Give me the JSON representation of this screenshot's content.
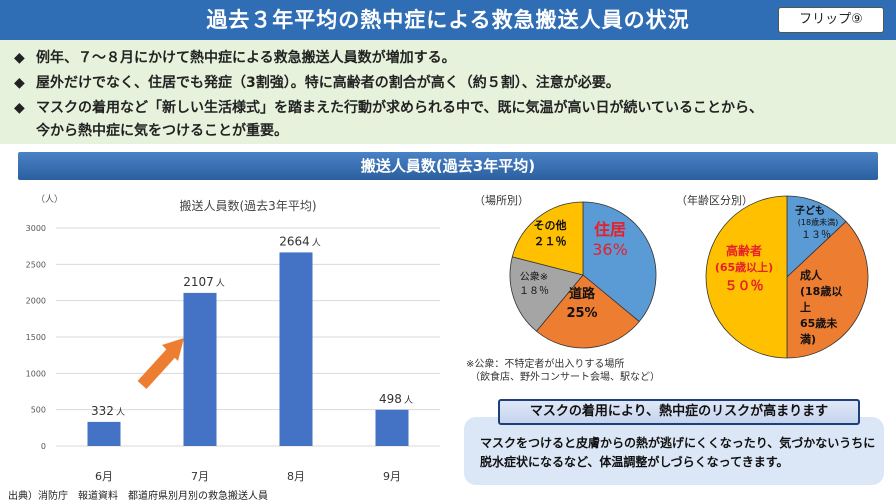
{
  "header": {
    "title": "過去３年平均の熱中症による救急搬送人員の状況",
    "flip_label": "フリップ⑨"
  },
  "bullets": [
    {
      "mark": "◆",
      "text": "例年、７～８月にかけて熱中症による救急搬送人員数が増加する。"
    },
    {
      "mark": "◆",
      "text": "屋外だけでなく、住居でも発症（3割強）。特に高齢者の割合が高く（約５割）、注意が必要。"
    },
    {
      "mark": "◆",
      "text": "マスクの着用など「新しい生活様式」を踏まえた行動が求められる中で、既に気温が高い日が続いていることから、",
      "continuation": "今から熱中症に気をつけることが重要。"
    }
  ],
  "section_title": "搬送人員数(過去3年平均)",
  "chart_data": [
    {
      "type": "bar",
      "title": "搬送人員数(過去3年平均)",
      "ylabel": "（人）",
      "categories": [
        "6月",
        "7月",
        "8月",
        "9月"
      ],
      "values": [
        332,
        2107,
        2664,
        498
      ],
      "value_labels": [
        "332",
        "2107",
        "2664",
        "498"
      ],
      "value_unit": "人",
      "ylim": [
        0,
        3000
      ],
      "yticks": [
        0,
        500,
        1000,
        1500,
        2000,
        2500,
        3000
      ],
      "grid": true,
      "bar_color": "#4472c4",
      "arrow_color": "#ed7d31"
    },
    {
      "type": "pie",
      "title": "（場所別）",
      "slices": [
        {
          "name": "住居",
          "value": 36,
          "label": "36%",
          "color": "#5b9bd5",
          "text_color": "#e6202a"
        },
        {
          "name": "道路",
          "value": 25,
          "label": "25%",
          "color": "#ed7d31",
          "text_color": "#111111"
        },
        {
          "name": "公衆※",
          "value": 18,
          "label": "１８％",
          "color": "#a5a5a5",
          "text_color": "#111111"
        },
        {
          "name": "その他",
          "value": 21,
          "label": "２１％",
          "color": "#ffc000",
          "text_color": "#111111"
        }
      ]
    },
    {
      "type": "pie",
      "title": "（年齢区分別）",
      "slices": [
        {
          "name": "子ども",
          "sublabel": "(18歳未満)",
          "value": 13,
          "label": "１３％",
          "color": "#5b9bd5",
          "text_color": "#111111"
        },
        {
          "name": "成人",
          "sublabel": "(18歳以上65歳未満)",
          "value": 37,
          "label": "",
          "color": "#ed7d31",
          "text_color": "#111111"
        },
        {
          "name": "高齢者",
          "sublabel": "(65歳以上)",
          "value": 50,
          "label": "５０％",
          "color": "#ffc000",
          "text_color": "#e6202a"
        }
      ]
    }
  ],
  "pie_labels": {
    "adult_lines": [
      "成人",
      "(18歳以",
      "上",
      "65歳未",
      "満)"
    ],
    "child_sub": "(18歳未満)"
  },
  "notes": {
    "public_note_1": "※公衆：不特定者が出入りする場所",
    "public_note_2": "（飲食店、野外コンサート会場、駅など）"
  },
  "mask": {
    "title": "マスクの着用により、熱中症のリスクが高まります",
    "text": "マスクをつけると皮膚からの熱が逃げにくくなったり、気づかないうちに脱水症状になるなど、体温調整がしづらくなってきます。"
  },
  "source": "出典）消防庁　報道資料　都道府県別月別の救急搬送人員"
}
